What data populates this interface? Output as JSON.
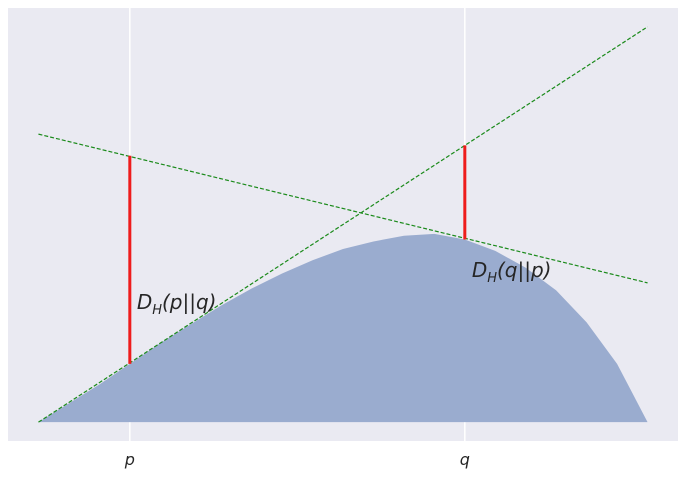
{
  "chart_data": {
    "type": "area",
    "x": [
      0,
      0.05,
      0.1,
      0.15,
      0.2,
      0.25,
      0.3,
      0.35,
      0.4,
      0.45,
      0.5,
      0.55,
      0.6,
      0.65,
      0.7,
      0.75,
      0.8,
      0.85,
      0.9,
      0.95,
      1.0
    ],
    "series": [
      {
        "color": "#9aaccf",
        "values": [
          0,
          0.1,
          0.2,
          0.31,
          0.42,
          0.52,
          0.62,
          0.71,
          0.79,
          0.86,
          0.92,
          0.96,
          0.99,
          1.0,
          0.97,
          0.91,
          0.82,
          0.7,
          0.53,
          0.31,
          0
        ]
      }
    ],
    "lines": [
      {
        "color": "#1a8a1a",
        "x": [
          0,
          1
        ],
        "values": [
          0,
          2.1
        ]
      },
      {
        "color": "#1a8a1a",
        "x": [
          0,
          1
        ],
        "values": [
          1.53,
          0.74
        ]
      }
    ],
    "segments": [
      {
        "color": "#ee1c1c",
        "x": 0.15,
        "y0": 0.31,
        "y1": 1.415,
        "label": {
          "main": "D",
          "sub": "H",
          "rest": "(p||q)"
        }
      },
      {
        "color": "#ee1c1c",
        "x": 0.7,
        "y0": 0.97,
        "y1": 1.47,
        "label": {
          "main": "D",
          "sub": "H",
          "rest": "(q||p)"
        }
      }
    ],
    "xlim": [
      -0.05,
      1.05
    ],
    "ylim": [
      -0.1,
      2.2
    ],
    "xticks": [
      {
        "value": 0.15,
        "label": "p"
      },
      {
        "value": 0.7,
        "label": "q"
      }
    ],
    "grid": true
  }
}
